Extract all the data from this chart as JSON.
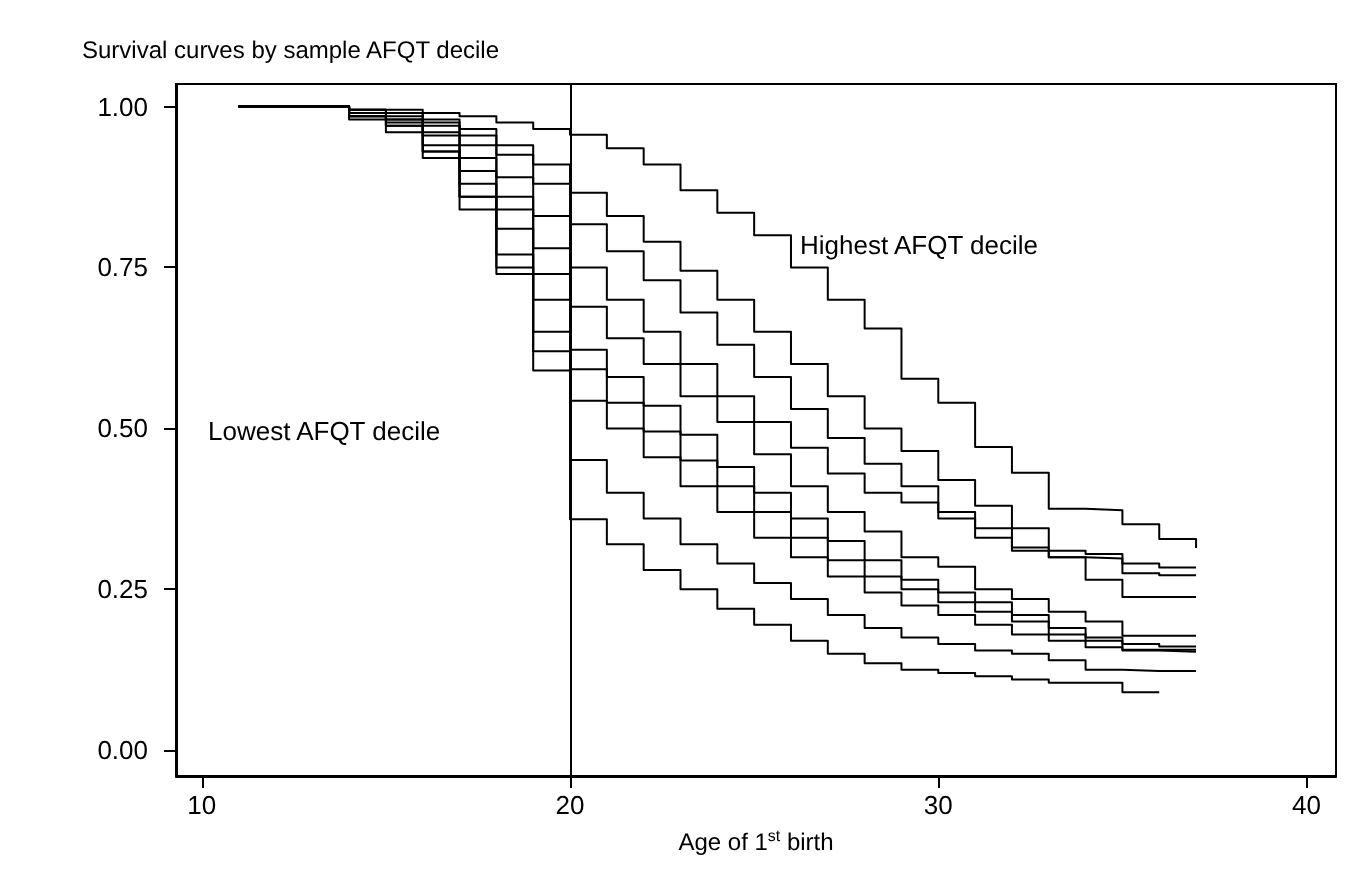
{
  "chart_data": {
    "type": "step",
    "title": "Survival curves by sample AFQT decile",
    "xlabel": "Age of 1$^{st}$ birth",
    "annotations": [
      "Highest AFQT decile",
      "Lowest AFQT decile"
    ],
    "xlim": [
      9.3,
      40.8
    ],
    "xticks": [
      10,
      20,
      30,
      40
    ],
    "ylim": [
      -0.04,
      1.035
    ],
    "yticks": [
      {
        "value": 0,
        "label": "0.00"
      },
      {
        "value": 0.25,
        "label": "0.25"
      },
      {
        "value": 0.5,
        "label": "0.50"
      },
      {
        "value": 0.75,
        "label": "0.75"
      },
      {
        "value": 1,
        "label": "1.00"
      }
    ],
    "x": [
      11,
      12,
      13,
      14,
      15,
      16,
      17,
      18,
      19,
      20,
      21,
      22,
      23,
      24,
      25,
      26,
      27,
      28,
      29,
      30,
      31,
      32,
      33,
      34,
      35,
      36,
      37
    ],
    "marker": "none",
    "line_style": "solid",
    "ref_lines": [
      {
        "axis": "x",
        "value": 20,
        "color": "#000000"
      }
    ],
    "series": [
      {
        "color": "#000000",
        "values": [
          1,
          1,
          1,
          0.995,
          0.995,
          0.99,
          0.985,
          0.975,
          0.965,
          0.956,
          0.935,
          0.91,
          0.87,
          0.835,
          0.8,
          0.75,
          0.7,
          0.655,
          0.577,
          0.54,
          0.471,
          0.431,
          0.375,
          0.373,
          0.351,
          0.328,
          0.314
        ]
      },
      {
        "color": "#000000",
        "values": [
          1,
          1,
          1,
          0.995,
          0.99,
          0.98,
          0.965,
          0.94,
          0.91,
          0.866,
          0.83,
          0.79,
          0.745,
          0.7,
          0.65,
          0.6,
          0.55,
          0.5,
          0.465,
          0.42,
          0.38,
          0.345,
          0.31,
          0.305,
          0.29,
          0.284,
          0.284
        ]
      },
      {
        "color": "#000000",
        "values": [
          1,
          1,
          1,
          0.995,
          0.99,
          0.975,
          0.955,
          0.925,
          0.88,
          0.817,
          0.775,
          0.73,
          0.68,
          0.63,
          0.58,
          0.53,
          0.485,
          0.445,
          0.41,
          0.37,
          0.345,
          0.31,
          0.3,
          0.298,
          0.275,
          0.272,
          0.272
        ]
      },
      {
        "color": "#000000",
        "values": [
          1,
          1,
          1,
          0.99,
          0.985,
          0.97,
          0.94,
          0.89,
          0.83,
          0.75,
          0.7,
          0.65,
          0.6,
          0.55,
          0.51,
          0.47,
          0.43,
          0.4,
          0.385,
          0.36,
          0.33,
          0.315,
          0.3,
          0.265,
          0.238,
          0.238,
          0.238
        ]
      },
      {
        "color": "#000000",
        "values": [
          1,
          1,
          1,
          0.99,
          0.98,
          0.96,
          0.92,
          0.86,
          0.78,
          0.689,
          0.64,
          0.6,
          0.55,
          0.51,
          0.46,
          0.41,
          0.37,
          0.34,
          0.3,
          0.285,
          0.25,
          0.235,
          0.215,
          0.2,
          0.178,
          0.178,
          0.178
        ]
      },
      {
        "color": "#000000",
        "values": [
          1,
          1,
          1,
          0.99,
          0.98,
          0.955,
          0.9,
          0.84,
          0.74,
          0.622,
          0.58,
          0.535,
          0.49,
          0.44,
          0.4,
          0.36,
          0.325,
          0.295,
          0.265,
          0.245,
          0.23,
          0.21,
          0.19,
          0.175,
          0.165,
          0.161,
          0.161
        ]
      },
      {
        "color": "#000000",
        "values": [
          1,
          1,
          1,
          0.985,
          0.975,
          0.94,
          0.88,
          0.81,
          0.7,
          0.592,
          0.54,
          0.495,
          0.45,
          0.41,
          0.37,
          0.33,
          0.295,
          0.27,
          0.25,
          0.23,
          0.215,
          0.2,
          0.18,
          0.17,
          0.156,
          0.156,
          0.156
        ]
      },
      {
        "color": "#000000",
        "values": [
          1,
          1,
          1,
          0.985,
          0.97,
          0.93,
          0.86,
          0.77,
          0.65,
          0.543,
          0.5,
          0.455,
          0.41,
          0.37,
          0.33,
          0.3,
          0.27,
          0.245,
          0.225,
          0.21,
          0.195,
          0.18,
          0.17,
          0.16,
          0.155,
          0.153,
          0.153
        ]
      },
      {
        "color": "#000000",
        "values": [
          1,
          1,
          1,
          0.985,
          0.97,
          0.92,
          0.84,
          0.74,
          0.59,
          0.451,
          0.4,
          0.36,
          0.32,
          0.29,
          0.26,
          0.235,
          0.21,
          0.19,
          0.175,
          0.165,
          0.155,
          0.15,
          0.14,
          0.125,
          0.123,
          0.123,
          0.123
        ]
      },
      {
        "color": "#000000",
        "x": [
          11,
          12,
          13,
          14,
          15,
          16,
          17,
          18,
          19,
          20,
          21,
          22,
          23,
          24,
          25,
          26,
          27,
          28,
          29,
          30,
          31,
          32,
          33,
          34,
          35,
          36
        ],
        "values": [
          1,
          1,
          1,
          0.98,
          0.96,
          0.93,
          0.86,
          0.75,
          0.62,
          0.359,
          0.32,
          0.28,
          0.25,
          0.22,
          0.195,
          0.17,
          0.15,
          0.135,
          0.125,
          0.12,
          0.115,
          0.11,
          0.105,
          0.105,
          0.09,
          0.09
        ]
      }
    ]
  }
}
